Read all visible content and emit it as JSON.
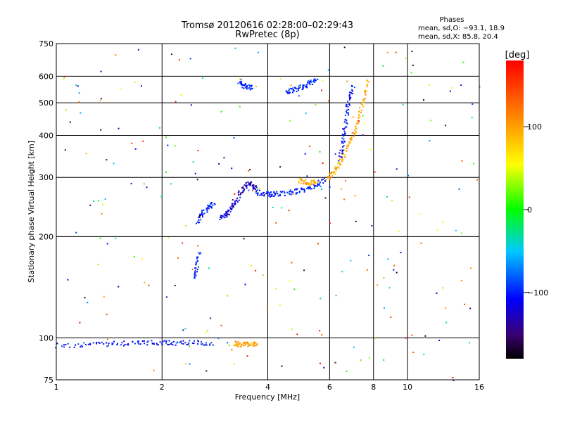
{
  "chart_data": {
    "type": "scatter",
    "title": "Tromsø 20120616 02:28:00–02:29:43",
    "subtitle": "RwPretec (8p)",
    "xlabel": "Frequency [MHz]",
    "ylabel": "Stationary phase Virtual Height [km]",
    "x_scale": "log",
    "y_scale": "log",
    "xlim": [
      1,
      16
    ],
    "ylim": [
      75,
      750
    ],
    "x_ticks": [
      "1",
      "2",
      "4",
      "6",
      "8",
      "10",
      "16"
    ],
    "y_ticks": [
      "75",
      "100",
      "200",
      "300",
      "400",
      "500",
      "600",
      "750"
    ],
    "grid": true,
    "phase_stats": {
      "heading": "Phases",
      "line_o": "mean, sd,O: −93.1, 18.9",
      "line_x": "mean, sd,X: 85.8, 20.4"
    },
    "colorbar": {
      "label": "[deg]",
      "range": [
        -180,
        180
      ],
      "tick_labels": [
        "100",
        "0",
        "−100"
      ],
      "tick_values": [
        100,
        0,
        -100
      ]
    },
    "traces": [
      {
        "x": [
          1.0,
          1.2,
          1.4,
          1.6,
          1.8,
          2.0,
          2.2,
          2.5,
          2.8
        ],
        "y": [
          95,
          96,
          96,
          97,
          97,
          97,
          97,
          97,
          97
        ],
        "phase": -105
      },
      {
        "x": [
          2.45,
          2.5,
          2.55
        ],
        "y": [
          150,
          165,
          182
        ],
        "phase": -95
      },
      {
        "x": [
          2.5,
          2.6,
          2.7,
          2.8
        ],
        "y": [
          222,
          235,
          245,
          255
        ],
        "phase": -100
      },
      {
        "x": [
          2.9,
          3.0,
          3.1,
          3.2,
          3.3
        ],
        "y": [
          228,
          232,
          240,
          250,
          262
        ],
        "phase": -120
      },
      {
        "x": [
          3.3,
          3.4,
          3.5,
          3.6,
          3.7
        ],
        "y": [
          268,
          280,
          290,
          285,
          275
        ],
        "phase": -130
      },
      {
        "x": [
          3.7,
          3.9,
          4.1,
          4.3,
          4.6,
          4.9,
          5.2,
          5.5,
          5.8
        ],
        "y": [
          272,
          270,
          268,
          270,
          272,
          275,
          280,
          288,
          298
        ],
        "phase": -100
      },
      {
        "x": [
          3.2,
          3.3,
          3.45,
          3.6,
          3.7
        ],
        "y": [
          97,
          96,
          96,
          96,
          96
        ],
        "phase": 100
      },
      {
        "x": [
          4.9,
          5.1,
          5.3,
          5.5
        ],
        "y": [
          295,
          292,
          290,
          295
        ],
        "phase": 95
      },
      {
        "x": [
          5.9,
          6.1,
          6.3,
          6.5,
          6.8,
          7.1,
          7.3,
          7.5,
          7.7
        ],
        "y": [
          300,
          310,
          325,
          345,
          380,
          420,
          470,
          530,
          590
        ],
        "phase": 95
      },
      {
        "x": [
          6.4,
          6.5,
          6.6,
          6.7,
          6.8,
          7.0
        ],
        "y": [
          340,
          380,
          420,
          470,
          520,
          560
        ],
        "phase": -105
      },
      {
        "x": [
          3.3,
          3.4,
          3.5,
          3.6
        ],
        "y": [
          580,
          565,
          560,
          555
        ],
        "phase": -100
      },
      {
        "x": [
          4.5,
          4.7,
          4.9,
          5.1,
          5.3,
          5.5
        ],
        "y": [
          540,
          548,
          556,
          565,
          578,
          590
        ],
        "phase": -95
      }
    ]
  }
}
